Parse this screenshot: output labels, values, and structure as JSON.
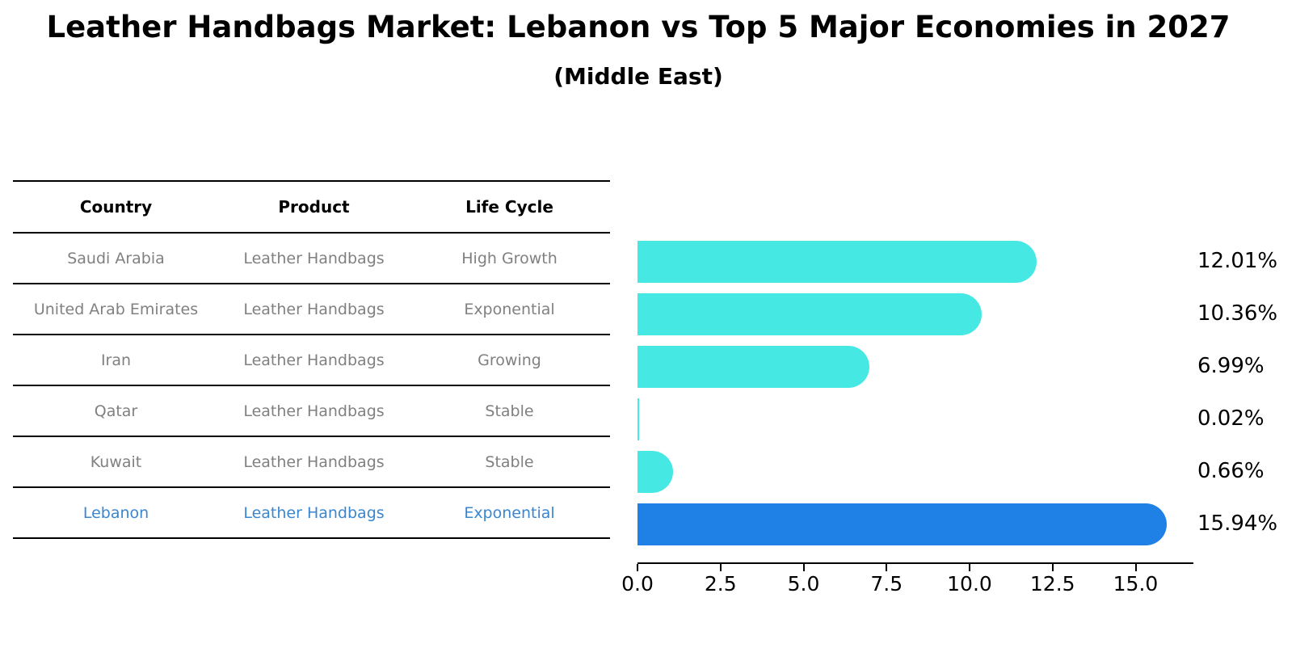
{
  "title": "Leather Handbags Market: Lebanon vs Top 5 Major Economies in 2027",
  "subtitle": "(Middle East)",
  "colors": {
    "bar_default": "#46e8e4",
    "bar_highlight": "#1f80e6",
    "highlight_text": "#3a86d0",
    "table_text": "#808080",
    "heading_text": "#000000"
  },
  "table": {
    "headers": [
      "Country",
      "Product",
      "Life Cycle"
    ],
    "rows": [
      {
        "country": "Saudi Arabia",
        "product": "Leather Handbags",
        "life_cycle": "High Growth",
        "highlight": false
      },
      {
        "country": "United Arab Emirates",
        "product": "Leather Handbags",
        "life_cycle": "Exponential",
        "highlight": false
      },
      {
        "country": "Iran",
        "product": "Leather Handbags",
        "life_cycle": "Growing",
        "highlight": false
      },
      {
        "country": "Qatar",
        "product": "Leather Handbags",
        "life_cycle": "Stable",
        "highlight": false
      },
      {
        "country": "Kuwait",
        "product": "Leather Handbags",
        "life_cycle": "Stable",
        "highlight": false
      },
      {
        "country": "Lebanon",
        "product": "Leather Handbags",
        "life_cycle": "Exponential",
        "highlight": true
      }
    ]
  },
  "chart_data": {
    "type": "bar",
    "orientation": "horizontal",
    "title": "Leather Handbags Market: Lebanon vs Top 5 Major Economies in 2027 (Middle East)",
    "categories": [
      "Saudi Arabia",
      "United Arab Emirates",
      "Iran",
      "Qatar",
      "Kuwait",
      "Lebanon"
    ],
    "values": [
      12.01,
      10.36,
      6.99,
      0.02,
      0.66,
      15.94
    ],
    "bar_labels": [
      "12.01%",
      "10.36%",
      "6.99%",
      "0.02%",
      "0.66%",
      "15.94%"
    ],
    "highlight_index": 5,
    "x_ticks": [
      "0.0",
      "2.5",
      "5.0",
      "7.5",
      "10.0",
      "12.5",
      "15.0"
    ],
    "xlim": [
      0,
      16.74
    ],
    "xlabel": "",
    "ylabel": "",
    "grid": false,
    "legend": false
  }
}
